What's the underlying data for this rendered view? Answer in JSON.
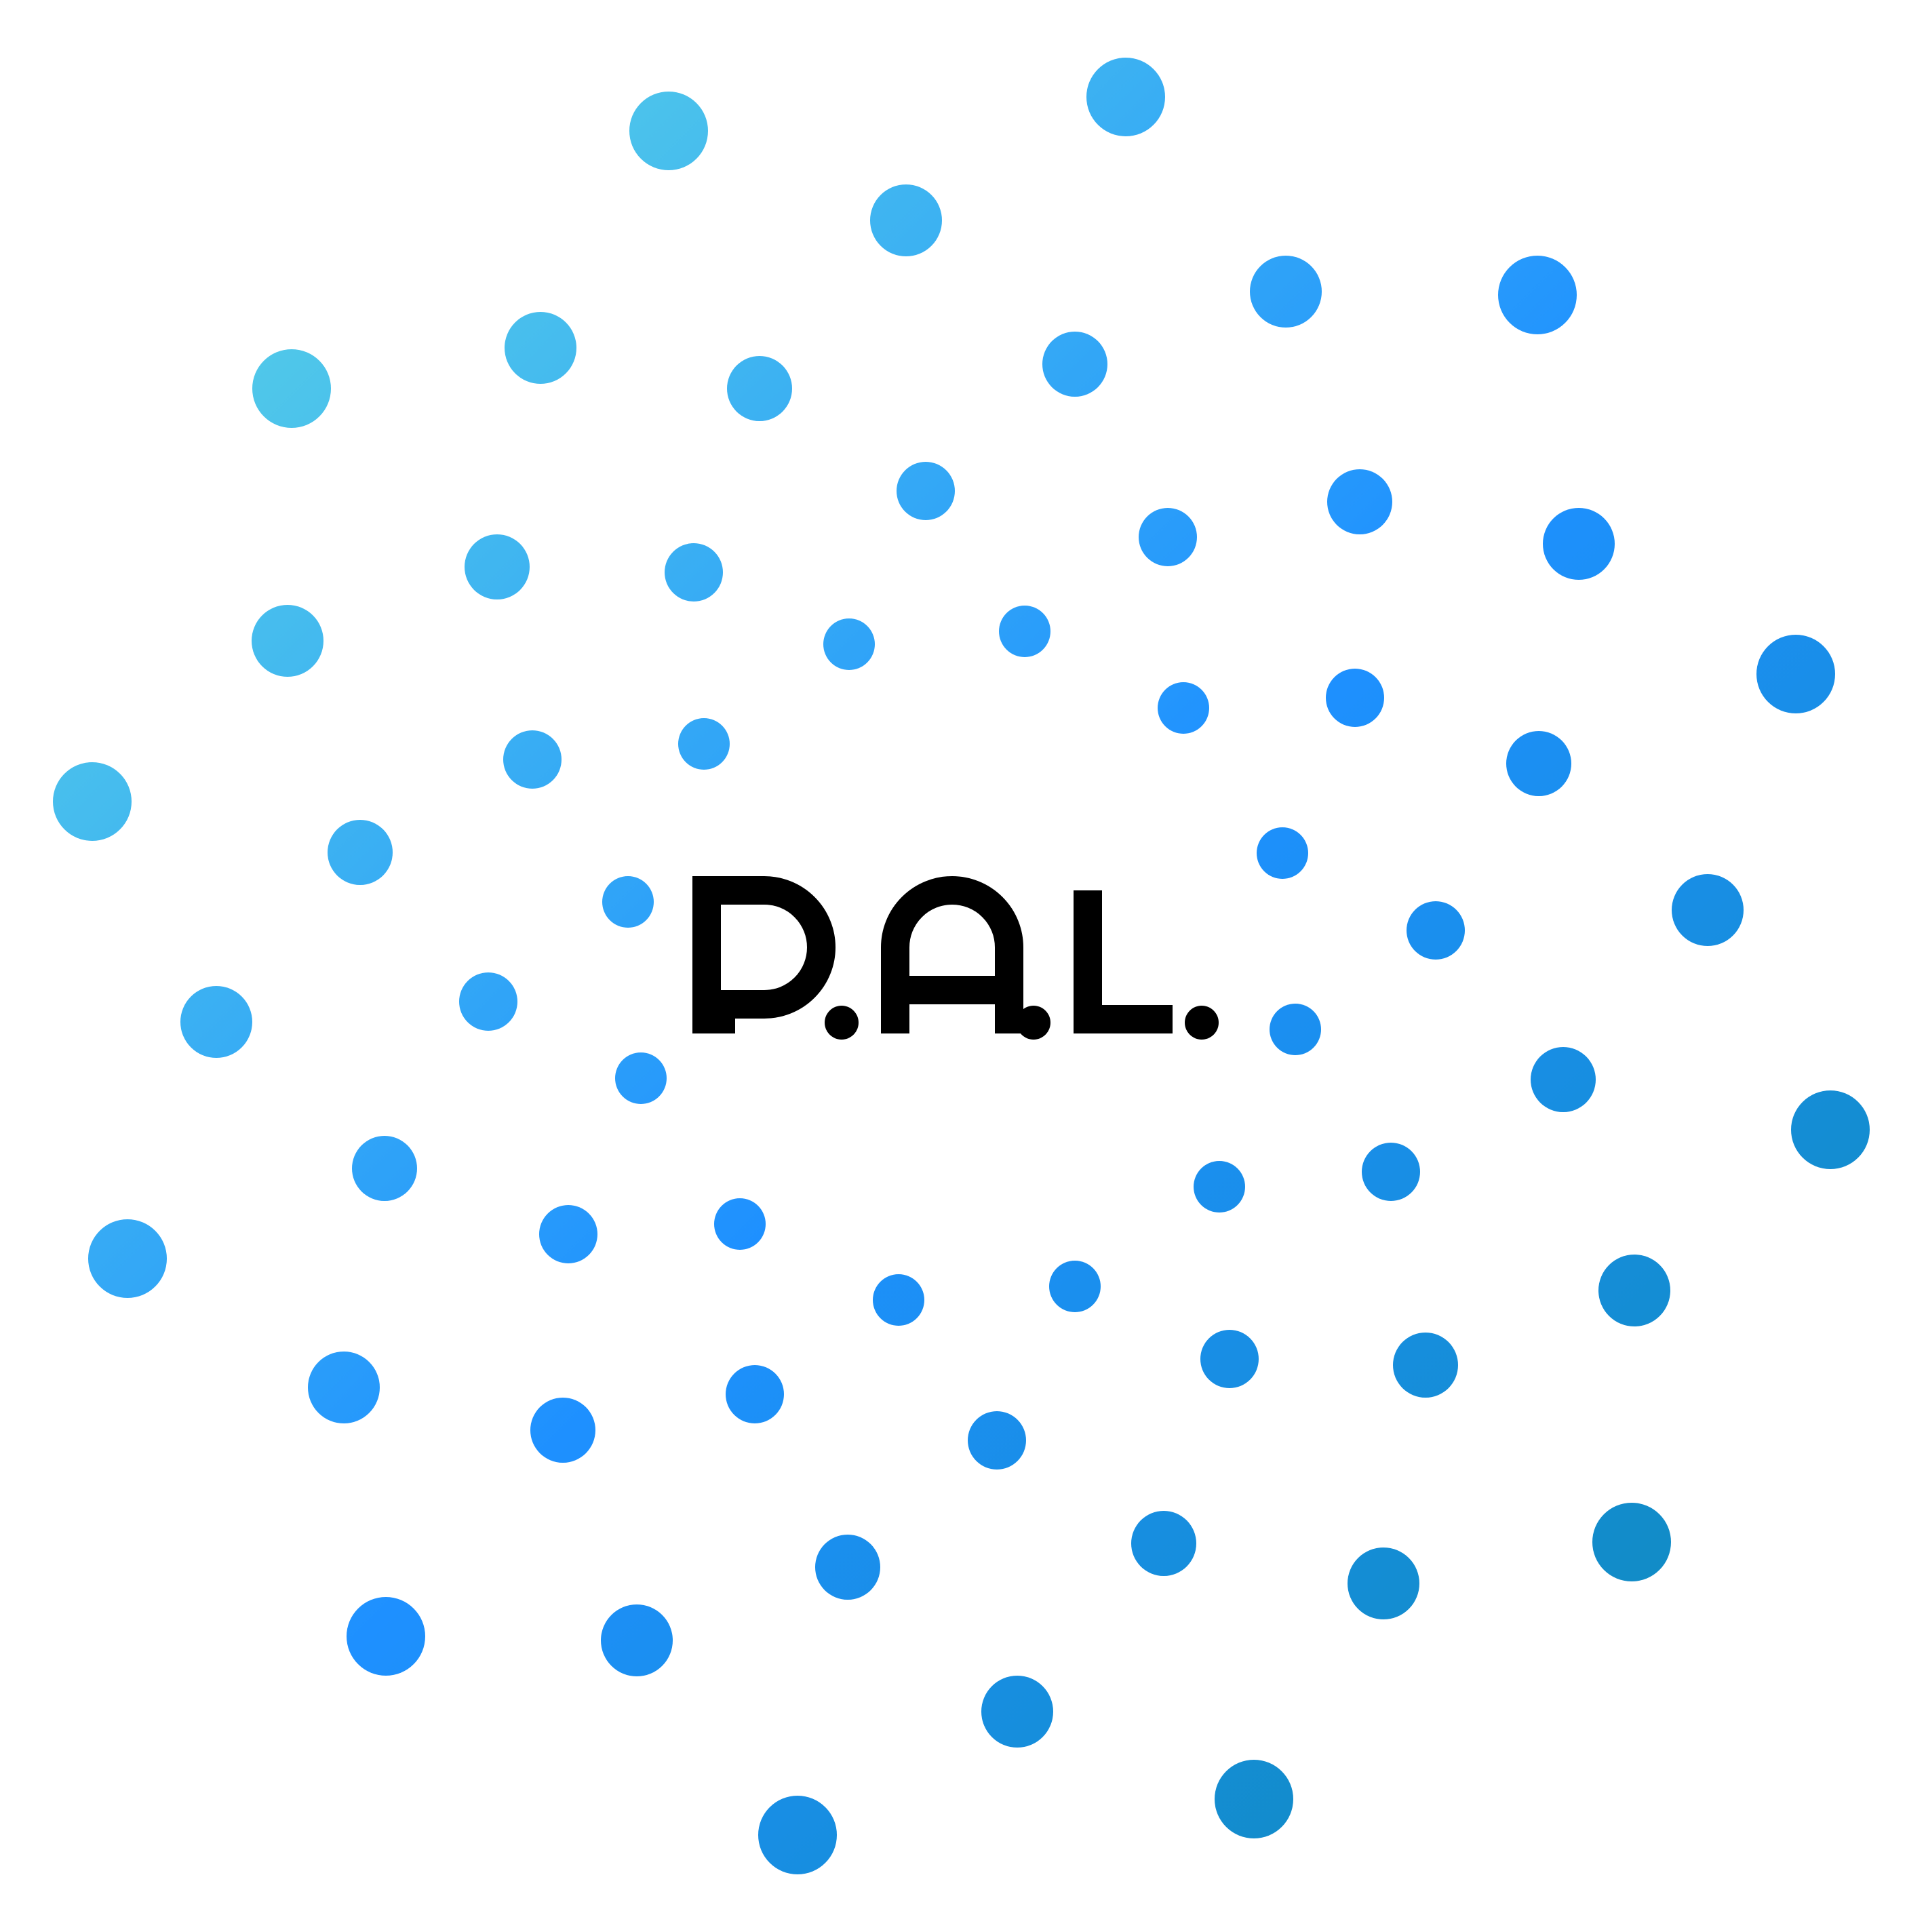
{
  "logo": {
    "wordmark": "P.A.L.",
    "colors": {
      "gradient_start": "#66e0e0",
      "gradient_mid": "#1e90ff",
      "gradient_end": "#0b8aaa",
      "wordmark": "#000000",
      "background": "#ffffff"
    }
  }
}
